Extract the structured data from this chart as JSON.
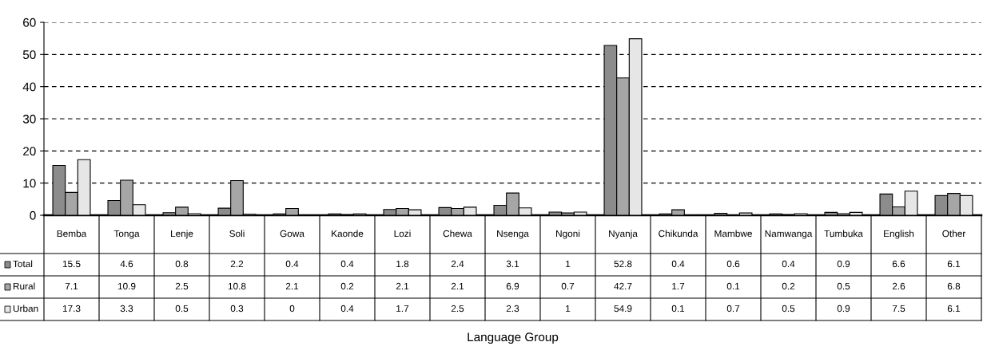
{
  "chart_data": {
    "type": "bar",
    "annotations": [
      "Language Group"
    ],
    "categories": [
      "Bemba",
      "Tonga",
      "Lenje",
      "Soli",
      "Gowa",
      "Kaonde",
      "Lozi",
      "Chewa",
      "Nsenga",
      "Ngoni",
      "Nyanja",
      "Chikunda",
      "Mambwe",
      "Namwanga",
      "Tumbuka",
      "English",
      "Other"
    ],
    "series": [
      {
        "name": "Total",
        "color": "#8c8c8c",
        "values": [
          15.5,
          4.6,
          0.8,
          2.2,
          0.4,
          0.4,
          1.8,
          2.4,
          3.1,
          1,
          52.8,
          0.4,
          0.6,
          0.4,
          0.9,
          6.6,
          6.1
        ]
      },
      {
        "name": "Rural",
        "color": "#a6a6a6",
        "values": [
          7.1,
          10.9,
          2.5,
          10.8,
          2.1,
          0.2,
          2.1,
          2.1,
          6.9,
          0.7,
          42.7,
          1.7,
          0.1,
          0.2,
          0.5,
          2.6,
          6.8
        ]
      },
      {
        "name": "Urban",
        "color": "#e6e6e6",
        "values": [
          17.3,
          3.3,
          0.5,
          0.3,
          0,
          0.4,
          1.7,
          2.5,
          2.3,
          1,
          54.9,
          0.1,
          0.7,
          0.5,
          0.9,
          7.5,
          6.1
        ]
      }
    ],
    "ylim": [
      0,
      60
    ],
    "yticks": [
      0,
      10,
      20,
      30,
      40,
      50,
      60
    ],
    "grid": "y",
    "legend": "left",
    "data_labels": true
  }
}
